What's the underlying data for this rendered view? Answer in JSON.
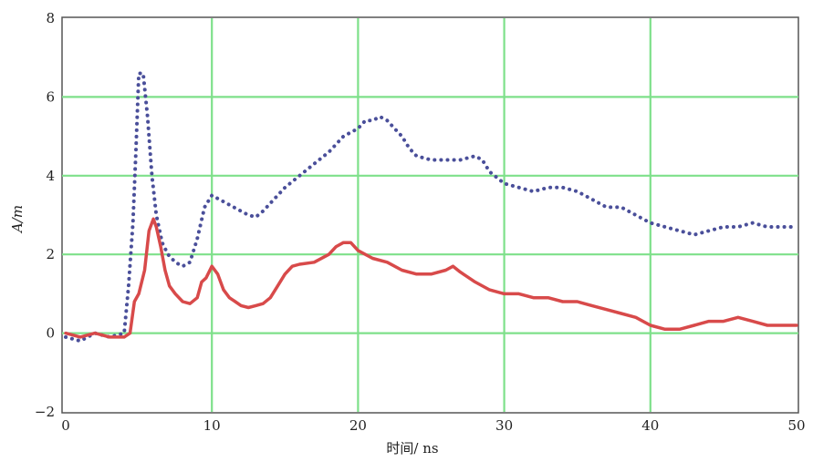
{
  "chart_data": {
    "type": "line",
    "xlabel": "时间/ ns",
    "ylabel": "A/m",
    "xlim": [
      0,
      50
    ],
    "ylim": [
      -2,
      8
    ],
    "xticks": [
      "0",
      "10",
      "20",
      "30",
      "40",
      "50"
    ],
    "yticks": [
      "−2",
      "0",
      "2",
      "4",
      "6",
      "8"
    ],
    "grid": true,
    "grid_color": "#7ee08a",
    "series": [
      {
        "style": "dotted",
        "color": "#4a4f9a",
        "x": [
          0,
          1,
          2,
          3,
          4,
          4.3,
          4.6,
          4.8,
          5,
          5.3,
          5.6,
          5.9,
          6.2,
          6.6,
          7,
          7.5,
          8,
          8.5,
          9,
          9.5,
          10,
          10.5,
          11,
          11.5,
          12,
          12.5,
          13,
          13.5,
          14,
          15,
          16,
          17,
          18,
          19,
          19.5,
          20,
          20.5,
          21,
          21.5,
          22,
          22.5,
          23,
          23.5,
          24,
          25,
          26,
          27,
          28,
          28.5,
          29,
          30,
          31,
          32,
          33,
          34,
          35,
          36,
          37,
          38,
          39,
          40,
          41,
          42,
          43,
          44,
          45,
          46,
          47,
          48,
          49,
          50
        ],
        "y": [
          -0.1,
          -0.2,
          0,
          -0.1,
          0,
          1.2,
          2.8,
          4.6,
          6.6,
          6.6,
          5.5,
          4.0,
          3.0,
          2.3,
          2.0,
          1.8,
          1.7,
          1.8,
          2.4,
          3.2,
          3.5,
          3.4,
          3.3,
          3.2,
          3.1,
          3.0,
          2.95,
          3.1,
          3.3,
          3.7,
          4.0,
          4.3,
          4.6,
          5.0,
          5.1,
          5.2,
          5.4,
          5.4,
          5.5,
          5.4,
          5.2,
          5.0,
          4.7,
          4.5,
          4.4,
          4.4,
          4.4,
          4.5,
          4.4,
          4.1,
          3.8,
          3.7,
          3.6,
          3.7,
          3.7,
          3.6,
          3.4,
          3.2,
          3.2,
          3.0,
          2.8,
          2.7,
          2.6,
          2.5,
          2.6,
          2.7,
          2.7,
          2.8,
          2.7,
          2.7,
          2.7
        ]
      },
      {
        "style": "solid",
        "color": "#d84a4a",
        "x": [
          0,
          1,
          2,
          3,
          4,
          4.4,
          4.7,
          5,
          5.4,
          5.7,
          6,
          6.2,
          6.5,
          6.8,
          7.1,
          7.5,
          8,
          8.5,
          9,
          9.3,
          9.6,
          10,
          10.4,
          10.8,
          11.2,
          11.6,
          12,
          12.5,
          13,
          13.5,
          14,
          14.5,
          15,
          15.5,
          16,
          17,
          18,
          18.5,
          19,
          19.5,
          20,
          21,
          22,
          23,
          24,
          25,
          26,
          26.5,
          27,
          28,
          29,
          30,
          31,
          32,
          33,
          34,
          35,
          36,
          37,
          38,
          39,
          40,
          41,
          42,
          43,
          44,
          45,
          46,
          47,
          48,
          49,
          50
        ],
        "y": [
          0,
          -0.1,
          0,
          -0.1,
          -0.1,
          0,
          0.8,
          1.0,
          1.6,
          2.6,
          2.9,
          2.7,
          2.2,
          1.6,
          1.2,
          1.0,
          0.8,
          0.75,
          0.9,
          1.3,
          1.4,
          1.7,
          1.5,
          1.1,
          0.9,
          0.8,
          0.7,
          0.65,
          0.7,
          0.75,
          0.9,
          1.2,
          1.5,
          1.7,
          1.75,
          1.8,
          2.0,
          2.2,
          2.3,
          2.3,
          2.1,
          1.9,
          1.8,
          1.6,
          1.5,
          1.5,
          1.6,
          1.7,
          1.55,
          1.3,
          1.1,
          1.0,
          1.0,
          0.9,
          0.9,
          0.8,
          0.8,
          0.7,
          0.6,
          0.5,
          0.4,
          0.2,
          0.1,
          0.1,
          0.2,
          0.3,
          0.3,
          0.4,
          0.3,
          0.2,
          0.2,
          0.2
        ]
      }
    ]
  }
}
